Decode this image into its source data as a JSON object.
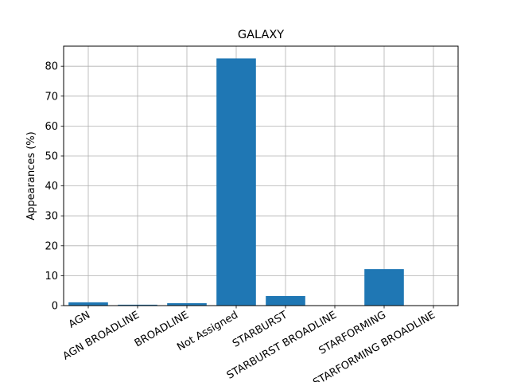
{
  "chart_data": {
    "type": "bar",
    "title": "GALAXY",
    "xlabel": "",
    "ylabel": "Appearances (%)",
    "categories": [
      "AGN",
      "AGN BROADLINE",
      "BROADLINE",
      "Not Assigned",
      "STARBURST",
      "STARBURST BROADLINE",
      "STARFORMING",
      "STARFORMING BROADLINE"
    ],
    "values": [
      1.1,
      0.3,
      0.8,
      82.6,
      3.2,
      0.0,
      12.2,
      0.0
    ],
    "ylim": [
      0,
      86.7
    ],
    "yticks": [
      0,
      10,
      20,
      30,
      40,
      50,
      60,
      70,
      80
    ],
    "grid": true,
    "bar_color": "#1f77b4",
    "grid_color": "#b0b0b0"
  }
}
